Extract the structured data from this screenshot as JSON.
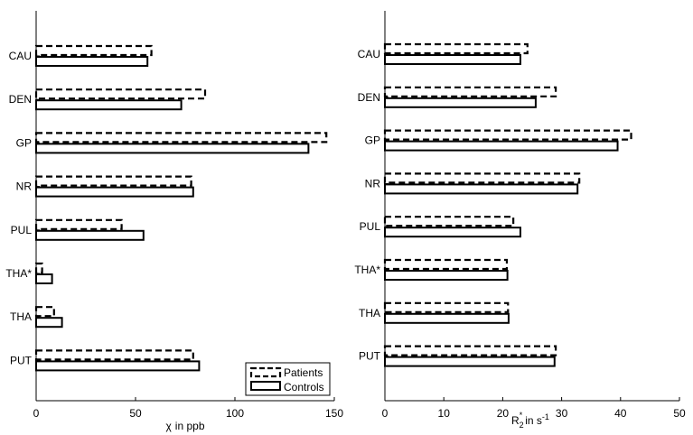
{
  "chart_data": [
    {
      "type": "bar",
      "orientation": "horizontal",
      "categories": [
        "CAU",
        "DEN",
        "GP",
        "NR",
        "PUL",
        "THA*",
        "THA",
        "PUT"
      ],
      "series": [
        {
          "name": "Patients",
          "values": [
            58,
            85,
            146,
            78,
            43,
            3,
            9,
            79
          ]
        },
        {
          "name": "Controls",
          "values": [
            56,
            73,
            137,
            79,
            54,
            8,
            13,
            82
          ]
        }
      ],
      "xlabel_prefix": "χ",
      "xlabel_suffix": "in ppb",
      "xlim": [
        0,
        150
      ],
      "xticks": [
        "0",
        "50",
        "100",
        "150"
      ],
      "legend": {
        "position": "bottom-right",
        "entries": [
          "Patients",
          "Controls"
        ]
      }
    },
    {
      "type": "bar",
      "orientation": "horizontal",
      "categories": [
        "CAU",
        "DEN",
        "GP",
        "NR",
        "PUL",
        "THA*",
        "THA",
        "PUT"
      ],
      "series": [
        {
          "name": "Patients",
          "values": [
            24.2,
            29.0,
            41.8,
            33.0,
            21.8,
            20.7,
            20.9,
            29.0
          ]
        },
        {
          "name": "Controls",
          "values": [
            23.0,
            25.6,
            39.5,
            32.7,
            23.0,
            20.8,
            21.0,
            28.8
          ]
        }
      ],
      "xlabel_main": "R",
      "xlabel_sub": "2",
      "xlabel_sup": "*",
      "xlabel_rest": "in s",
      "xlabel_exp": "-1",
      "xlim": [
        0,
        50
      ],
      "xticks": [
        "0",
        "10",
        "20",
        "30",
        "40",
        "50"
      ]
    }
  ]
}
